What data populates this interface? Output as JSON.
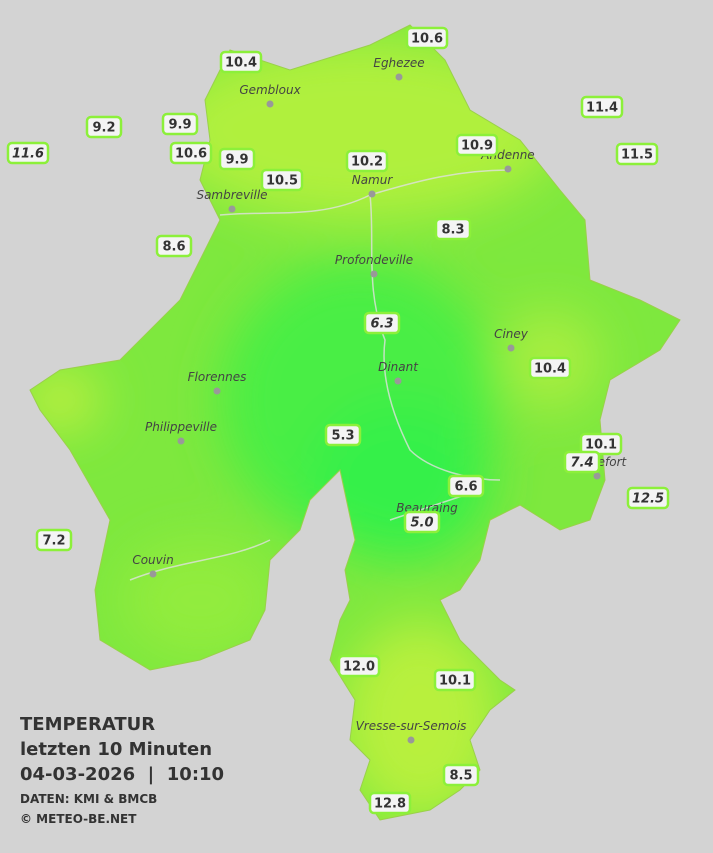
{
  "legend": {
    "title": "TEMPERATUR",
    "subtitle": "letzten 10 Minuten",
    "datetime": "04-03-2026  |  10:10",
    "source": "DATEN: KMI & BMCB",
    "copyright": "© METEO-BE.NET"
  },
  "towns": [
    "Eghezee",
    "Gembloux",
    "Andenne",
    "Namur",
    "Sambreville",
    "Profondeville",
    "Ciney",
    "Dinant",
    "Florennes",
    "Philippeville",
    "Rochefort",
    "Beauraing",
    "Couvin",
    "Vresse-sur-Semois"
  ],
  "stations": [
    {
      "label": "10.6",
      "italic": false
    },
    {
      "label": "10.4",
      "italic": false
    },
    {
      "label": "11.4",
      "italic": false
    },
    {
      "label": "9.2",
      "italic": false
    },
    {
      "label": "9.9",
      "italic": false
    },
    {
      "label": "11.6",
      "italic": true
    },
    {
      "label": "10.6",
      "italic": false
    },
    {
      "label": "9.9",
      "italic": false
    },
    {
      "label": "10.2",
      "italic": false
    },
    {
      "label": "10.9",
      "italic": false
    },
    {
      "label": "11.5",
      "italic": false
    },
    {
      "label": "10.5",
      "italic": false
    },
    {
      "label": "8.3",
      "italic": false
    },
    {
      "label": "8.6",
      "italic": false
    },
    {
      "label": "6.3",
      "italic": true
    },
    {
      "label": "10.4",
      "italic": false
    },
    {
      "label": "5.3",
      "italic": false
    },
    {
      "label": "10.1",
      "italic": false
    },
    {
      "label": "7.4",
      "italic": true
    },
    {
      "label": "12.5",
      "italic": true
    },
    {
      "label": "6.6",
      "italic": false
    },
    {
      "label": "5.0",
      "italic": true
    },
    {
      "label": "7.2",
      "italic": false
    },
    {
      "label": "12.0",
      "italic": false
    },
    {
      "label": "10.1",
      "italic": false
    },
    {
      "label": "8.5",
      "italic": false
    },
    {
      "label": "12.8",
      "italic": false
    }
  ]
}
